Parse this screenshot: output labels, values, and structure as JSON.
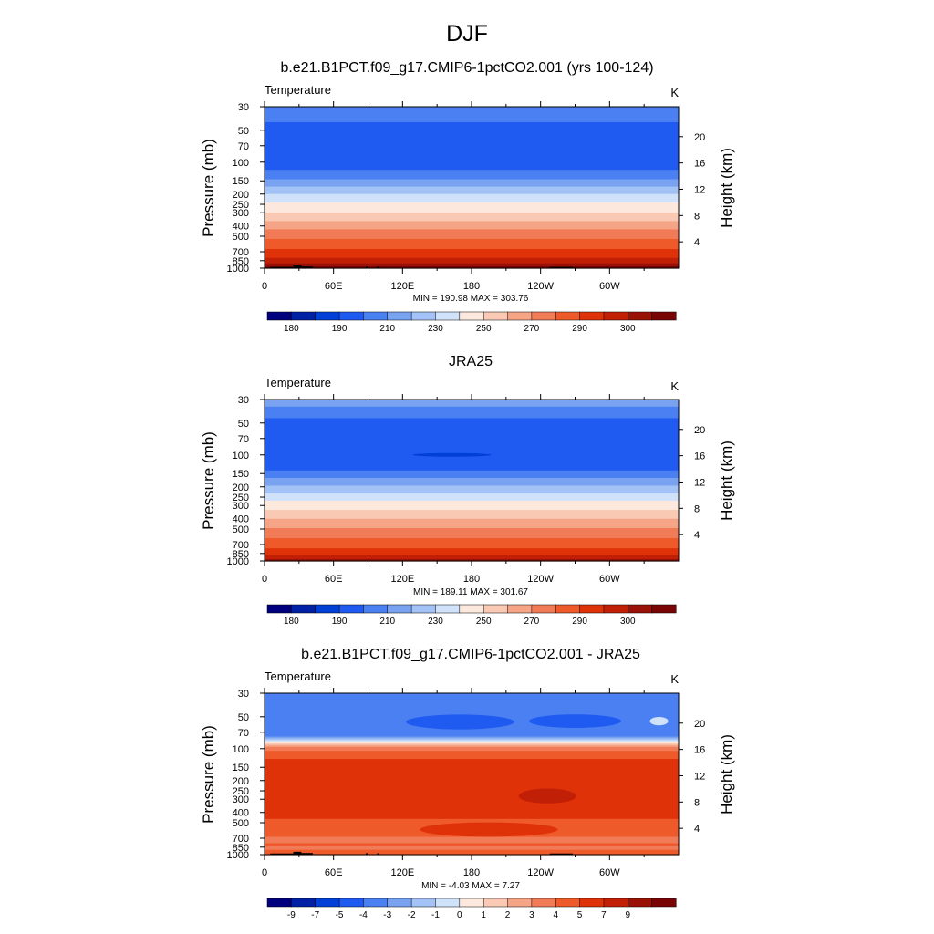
{
  "figure": {
    "suptitle": "DJF",
    "colors": [
      "#00007f",
      "#0020a6",
      "#0040d6",
      "#1f5bf0",
      "#4a80f2",
      "#79a3f0",
      "#a3c2f5",
      "#cfe2fa",
      "#fce8dc",
      "#f9c9b3",
      "#f5a586",
      "#f27b57",
      "#ee5a2a",
      "#e03209",
      "#c21f07",
      "#9a1207",
      "#7a0404"
    ]
  },
  "chart_data": [
    {
      "type": "heatmap",
      "title": "b.e21.B1PCT.f09_g17.CMIP6-1pctCO2.001 (yrs 100-124)",
      "field_label": "Temperature",
      "units": "K",
      "ylabel": "Pressure (mb)",
      "ylabel_right": "Height (km)",
      "xlabel": "",
      "x_ticks": [
        "0",
        "60E",
        "120E",
        "180",
        "120W",
        "60W"
      ],
      "x_tick_values": [
        0,
        60,
        120,
        180,
        240,
        300
      ],
      "xlim": [
        0,
        360
      ],
      "y_ticks": [
        "30",
        "50",
        "70",
        "100",
        "150",
        "200",
        "250",
        "300",
        "400",
        "500",
        "700",
        "850",
        "1000"
      ],
      "y_tick_values": [
        30,
        50,
        70,
        100,
        150,
        200,
        250,
        300,
        400,
        500,
        700,
        850,
        1000
      ],
      "ylim": [
        30,
        1000
      ],
      "height_ticks": [
        "20",
        "16",
        "12",
        "8",
        "4"
      ],
      "height_tick_values": [
        20,
        16,
        12,
        8,
        4
      ],
      "stats": "MIN = 190.98  MAX = 303.76",
      "min": 190.98,
      "max": 303.76,
      "colorbar_labels": [
        "180",
        "190",
        "210",
        "230",
        "250",
        "270",
        "290",
        "300"
      ],
      "colorbar_label_slots": [
        1,
        3,
        5,
        7,
        9,
        11,
        13,
        15
      ],
      "layers": [
        {
          "p": 30,
          "c": 4
        },
        {
          "p": 42,
          "c": 3
        },
        {
          "p": 118,
          "c": 4
        },
        {
          "p": 145,
          "c": 5
        },
        {
          "p": 170,
          "c": 6
        },
        {
          "p": 200,
          "c": 7
        },
        {
          "p": 240,
          "c": 8
        },
        {
          "p": 300,
          "c": 9
        },
        {
          "p": 360,
          "c": 10
        },
        {
          "p": 430,
          "c": 11
        },
        {
          "p": 530,
          "c": 12
        },
        {
          "p": 660,
          "c": 13
        },
        {
          "p": 800,
          "c": 14
        },
        {
          "p": 900,
          "c": 15
        },
        {
          "p": 960,
          "c": 16
        }
      ],
      "topography": [
        [
          5,
          25,
          975
        ],
        [
          25,
          32,
          940
        ],
        [
          32,
          42,
          965
        ],
        [
          88,
          90,
          970
        ],
        [
          98,
          100,
          970
        ],
        [
          248,
          268,
          975
        ]
      ],
      "blobs": []
    },
    {
      "type": "heatmap",
      "title": "JRA25",
      "field_label": "Temperature",
      "units": "K",
      "ylabel": "Pressure (mb)",
      "ylabel_right": "Height (km)",
      "xlabel": "",
      "x_ticks": [
        "0",
        "60E",
        "120E",
        "180",
        "120W",
        "60W"
      ],
      "x_tick_values": [
        0,
        60,
        120,
        180,
        240,
        300
      ],
      "xlim": [
        0,
        360
      ],
      "y_ticks": [
        "30",
        "50",
        "70",
        "100",
        "150",
        "200",
        "250",
        "300",
        "400",
        "500",
        "700",
        "850",
        "1000"
      ],
      "y_tick_values": [
        30,
        50,
        70,
        100,
        150,
        200,
        250,
        300,
        400,
        500,
        700,
        850,
        1000
      ],
      "ylim": [
        30,
        1000
      ],
      "height_ticks": [
        "20",
        "16",
        "12",
        "8",
        "4"
      ],
      "height_tick_values": [
        20,
        16,
        12,
        8,
        4
      ],
      "stats": "MIN = 189.11  MAX = 301.67",
      "min": 189.11,
      "max": 301.67,
      "colorbar_labels": [
        "180",
        "190",
        "210",
        "230",
        "250",
        "270",
        "290",
        "300"
      ],
      "colorbar_label_slots": [
        1,
        3,
        5,
        7,
        9,
        11,
        13,
        15
      ],
      "layers": [
        {
          "p": 30,
          "c": 5
        },
        {
          "p": 35,
          "c": 4
        },
        {
          "p": 45,
          "c": 3
        },
        {
          "p": 140,
          "c": 4
        },
        {
          "p": 165,
          "c": 5
        },
        {
          "p": 195,
          "c": 6
        },
        {
          "p": 230,
          "c": 7
        },
        {
          "p": 270,
          "c": 8
        },
        {
          "p": 330,
          "c": 9
        },
        {
          "p": 400,
          "c": 10
        },
        {
          "p": 490,
          "c": 11
        },
        {
          "p": 610,
          "c": 12
        },
        {
          "p": 760,
          "c": 13
        },
        {
          "p": 880,
          "c": 14
        },
        {
          "p": 960,
          "c": 15
        }
      ],
      "topography": [],
      "blobs": [
        {
          "lon": 163,
          "p": 100,
          "rlon": 34,
          "rp": 3,
          "c": 2
        }
      ]
    },
    {
      "type": "heatmap",
      "title": "b.e21.B1PCT.f09_g17.CMIP6-1pctCO2.001 - JRA25",
      "field_label": "Temperature",
      "units": "K",
      "ylabel": "Pressure (mb)",
      "ylabel_right": "Height (km)",
      "xlabel": "",
      "x_ticks": [
        "0",
        "60E",
        "120E",
        "180",
        "120W",
        "60W"
      ],
      "x_tick_values": [
        0,
        60,
        120,
        180,
        240,
        300
      ],
      "xlim": [
        0,
        360
      ],
      "y_ticks": [
        "30",
        "50",
        "70",
        "100",
        "150",
        "200",
        "250",
        "300",
        "400",
        "500",
        "700",
        "850",
        "1000"
      ],
      "y_tick_values": [
        30,
        50,
        70,
        100,
        150,
        200,
        250,
        300,
        400,
        500,
        700,
        850,
        1000
      ],
      "ylim": [
        30,
        1000
      ],
      "height_ticks": [
        "20",
        "16",
        "12",
        "8",
        "4"
      ],
      "height_tick_values": [
        20,
        16,
        12,
        8,
        4
      ],
      "stats": "MIN =  -4.03  MAX =   7.27",
      "min": -4.03,
      "max": 7.27,
      "colorbar_labels": [
        "-9",
        "-7",
        "-5",
        "-4",
        "-3",
        "-2",
        "-1",
        "0",
        "1",
        "2",
        "3",
        "4",
        "5",
        "7",
        "9"
      ],
      "colorbar_label_slots": [
        1,
        2,
        3,
        4,
        5,
        6,
        7,
        8,
        9,
        10,
        11,
        12,
        13,
        14,
        15
      ],
      "layers": [
        {
          "p": 30,
          "c": 4
        },
        {
          "p": 77,
          "c": 5
        },
        {
          "p": 80,
          "c": 6
        },
        {
          "p": 83,
          "c": 7
        },
        {
          "p": 86,
          "c": 8
        },
        {
          "p": 89,
          "c": 9
        },
        {
          "p": 92,
          "c": 10
        },
        {
          "p": 96,
          "c": 11
        },
        {
          "p": 105,
          "c": 12
        },
        {
          "p": 125,
          "c": 13
        },
        {
          "p": 460,
          "c": 12
        },
        {
          "p": 680,
          "c": 11
        },
        {
          "p": 780,
          "c": 12
        },
        {
          "p": 820,
          "c": 11
        },
        {
          "p": 900,
          "c": 12
        }
      ],
      "topography": [
        [
          5,
          25,
          975
        ],
        [
          25,
          32,
          940
        ],
        [
          32,
          42,
          965
        ],
        [
          88,
          90,
          970
        ],
        [
          98,
          100,
          970
        ],
        [
          248,
          268,
          975
        ]
      ],
      "blobs": [
        {
          "lon": 170,
          "p": 56,
          "rlon": 47,
          "rp": 9,
          "c": 3
        },
        {
          "lon": 270,
          "p": 55,
          "rlon": 40,
          "rp": 8,
          "c": 3
        },
        {
          "lon": 343,
          "p": 55,
          "rlon": 8,
          "rp": 5,
          "c": 7
        },
        {
          "lon": 246,
          "p": 280,
          "rlon": 25,
          "rp": 45,
          "c": 14
        },
        {
          "lon": 195,
          "p": 580,
          "rlon": 60,
          "rp": 90,
          "c": 13
        }
      ]
    }
  ]
}
